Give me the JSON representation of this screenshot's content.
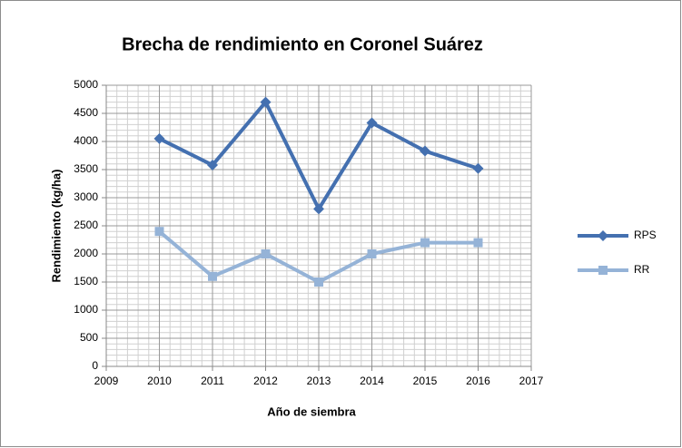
{
  "chart_data": {
    "type": "line",
    "title": "Brecha de rendimiento en Coronel Suárez",
    "x_label": "Año de siembra",
    "y_label": "Rendimiento (kg/ha)",
    "x": [
      2010,
      2011,
      2012,
      2013,
      2014,
      2015,
      2016
    ],
    "series": [
      {
        "name": "RPS",
        "color": "#4470b0",
        "marker": "diamond",
        "values": [
          4050,
          3580,
          4700,
          2800,
          4330,
          3830,
          3520
        ]
      },
      {
        "name": "RR",
        "color": "#95b3d7",
        "marker": "square",
        "values": [
          2400,
          1600,
          2000,
          1500,
          2000,
          2200,
          2200
        ]
      }
    ],
    "xlim": [
      2009,
      2017
    ],
    "xticks": [
      2009,
      2010,
      2011,
      2012,
      2013,
      2014,
      2015,
      2016,
      2017
    ],
    "ylim": [
      0,
      5000
    ],
    "yticks": [
      0,
      500,
      1000,
      1500,
      2000,
      2500,
      3000,
      3500,
      4000,
      4500,
      5000
    ],
    "grid": true,
    "legend": "right"
  }
}
